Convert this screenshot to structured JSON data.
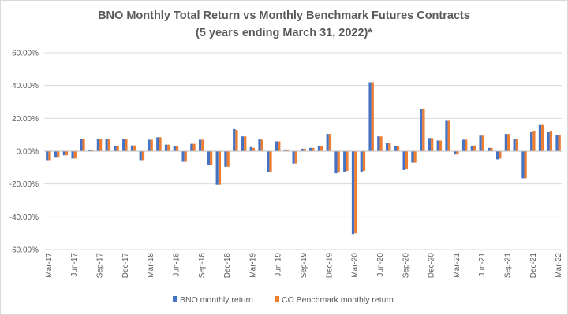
{
  "chart_data": {
    "type": "bar",
    "title": "BNO Monthly Total Return vs Monthly Benchmark Futures Contracts",
    "subtitle": "(5 years ending March 31, 2022)*",
    "xlabel": "",
    "ylabel": "",
    "ylim": [
      -60,
      60
    ],
    "y_ticks": [
      "60.00%",
      "40.00%",
      "20.00%",
      "0.00%",
      "-20.00%",
      "-40.00%",
      "-60.00%"
    ],
    "y_tick_values": [
      60,
      40,
      20,
      0,
      -20,
      -40,
      -60
    ],
    "x_tick_labels": [
      "Mar-17",
      "Jun-17",
      "Sep-17",
      "Dec-17",
      "Mar-18",
      "Jun-18",
      "Sep-18",
      "Dec-18",
      "Mar-19",
      "Jun-19",
      "Sep-19",
      "Dec-19",
      "Mar-20",
      "Jun-20",
      "Sep-20",
      "Dec-20",
      "Mar-21",
      "Jun-21",
      "Sep-21",
      "Dec-21",
      "Mar-22"
    ],
    "legend_position": "bottom",
    "grid": true,
    "categories": [
      "Mar-17",
      "Apr-17",
      "May-17",
      "Jun-17",
      "Jul-17",
      "Aug-17",
      "Sep-17",
      "Oct-17",
      "Nov-17",
      "Dec-17",
      "Jan-18",
      "Feb-18",
      "Mar-18",
      "Apr-18",
      "May-18",
      "Jun-18",
      "Jul-18",
      "Aug-18",
      "Sep-18",
      "Oct-18",
      "Nov-18",
      "Dec-18",
      "Jan-19",
      "Feb-19",
      "Mar-19",
      "Apr-19",
      "May-19",
      "Jun-19",
      "Jul-19",
      "Aug-19",
      "Sep-19",
      "Oct-19",
      "Nov-19",
      "Dec-19",
      "Jan-20",
      "Feb-20",
      "Mar-20",
      "Apr-20",
      "May-20",
      "Jun-20",
      "Jul-20",
      "Aug-20",
      "Sep-20",
      "Oct-20",
      "Nov-20",
      "Dec-20",
      "Jan-21",
      "Feb-21",
      "Mar-21",
      "Apr-21",
      "May-21",
      "Jun-21",
      "Jul-21",
      "Aug-21",
      "Sep-21",
      "Oct-21",
      "Nov-21",
      "Dec-21",
      "Jan-22",
      "Feb-22",
      "Mar-22"
    ],
    "series": [
      {
        "name": "BNO monthly return",
        "color": "#4472c4",
        "values": [
          -5.5,
          -3.5,
          -2.5,
          -4.5,
          7.5,
          1,
          7.5,
          7.5,
          3,
          7.5,
          3.5,
          -5.5,
          7,
          8.5,
          4,
          3,
          -6.5,
          4.5,
          7,
          -8.5,
          -20.5,
          -9.5,
          13.5,
          9,
          2.5,
          7.5,
          -12.5,
          6,
          1,
          -7.5,
          1.5,
          2,
          3,
          10.5,
          -13.5,
          -12.5,
          -50.5,
          -12.5,
          42,
          9,
          5,
          3,
          -11.5,
          -7,
          25.5,
          8,
          6.5,
          18.5,
          -2,
          7,
          3,
          9.5,
          2,
          -5,
          10.5,
          7.5,
          -16.5,
          12,
          16,
          12,
          10
        ]
      },
      {
        "name": "CO Benchmark monthly return",
        "color": "#ed7d31",
        "values": [
          -5.5,
          -3.5,
          -2.5,
          -4.5,
          7.5,
          1,
          7.5,
          7.5,
          3,
          7.5,
          3.5,
          -5.5,
          7,
          8.5,
          4,
          3,
          -6.5,
          4.5,
          7,
          -8.5,
          -20.5,
          -9.5,
          13,
          9,
          2,
          7,
          -12.5,
          6,
          1,
          -7.5,
          1.5,
          2,
          3,
          10.5,
          -13,
          -12,
          -50,
          -12,
          42,
          9,
          5,
          3,
          -11,
          -7,
          26,
          8,
          6.5,
          18.5,
          -2,
          7,
          3.5,
          9.5,
          2,
          -4.5,
          10.5,
          7.5,
          -16.5,
          12.5,
          16,
          12.5,
          10
        ]
      }
    ]
  }
}
